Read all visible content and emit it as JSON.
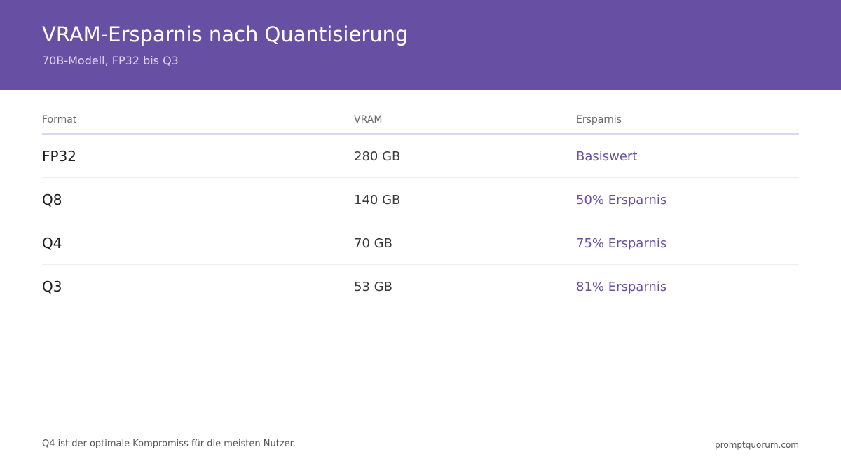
{
  "header": {
    "title": "VRAM-Ersparnis nach Quantisierung",
    "subtitle": "70B-Modell, FP32 bis Q3"
  },
  "table": {
    "columns": [
      "Format",
      "VRAM",
      "Ersparnis"
    ],
    "rows": [
      {
        "format": "FP32",
        "vram": "280 GB",
        "saving": "Basiswert"
      },
      {
        "format": "Q8",
        "vram": "140 GB",
        "saving": "50% Ersparnis"
      },
      {
        "format": "Q4",
        "vram": "70 GB",
        "saving": "75% Ersparnis"
      },
      {
        "format": "Q3",
        "vram": "53 GB",
        "saving": "81% Ersparnis"
      }
    ]
  },
  "footer": {
    "note": "Q4 ist der optimale Kompromiss für die meisten Nutzer.",
    "brand": "promptquorum.com"
  },
  "colors": {
    "accent": "#6750a4",
    "header_background": "#6750a4"
  }
}
